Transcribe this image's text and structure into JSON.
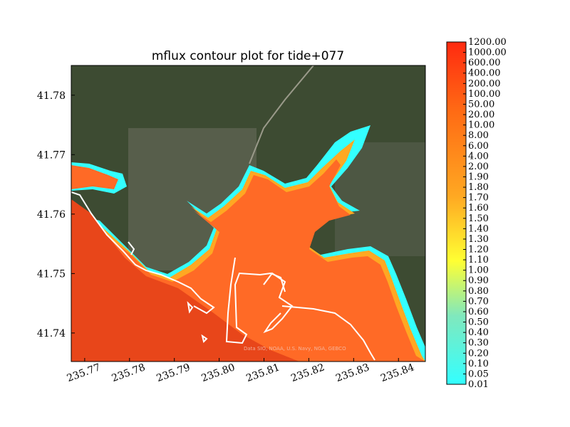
{
  "chart_data": {
    "type": "heatmap",
    "title": "mflux contour plot for tide+077",
    "xlabel": "",
    "ylabel": "",
    "xlim": [
      235.767,
      235.846
    ],
    "ylim": [
      41.7352,
      41.785
    ],
    "x_ticks": [
      "235.77",
      "235.78",
      "235.79",
      "235.80",
      "235.81",
      "235.82",
      "235.83",
      "235.84"
    ],
    "y_ticks": [
      "41.74",
      "41.75",
      "41.76",
      "41.77",
      "41.78"
    ],
    "colorbar": {
      "levels": [
        "0.01",
        "0.05",
        "0.10",
        "0.20",
        "0.30",
        "0.40",
        "0.50",
        "0.60",
        "0.70",
        "0.80",
        "0.90",
        "1.00",
        "1.10",
        "1.20",
        "1.30",
        "1.40",
        "1.50",
        "1.60",
        "1.70",
        "1.80",
        "1.90",
        "2.00",
        "4.00",
        "6.00",
        "8.00",
        "10.00",
        "20.00",
        "50.00",
        "100.00",
        "200.00",
        "400.00",
        "600.00",
        "1000.00",
        "1200.00"
      ],
      "colors": [
        "#33ffff",
        "#4cf7e9",
        "#66f0d3",
        "#80e8bd",
        "#99e0a7",
        "#b3d991",
        "#cce27a",
        "#e6f066",
        "#ffff33",
        "#fff230",
        "#ffe42d",
        "#ffd62a",
        "#ffc826",
        "#ffbb23",
        "#ffad20",
        "#ff9f1d",
        "#ff9119",
        "#ff8316",
        "#ff7613",
        "#ff6810",
        "#ff5a0c",
        "#ff4c09",
        "#ff3e06",
        "#ff3003"
      ]
    },
    "basemap_attribution": "Data SIO, NOAA, U.S. Navy, NGA, GEBCO",
    "colors": {
      "ocean": "#e8461a",
      "bay": "#ff6a26",
      "shore": "#33ffff",
      "land": "#3b4a2f",
      "coastline": "#ffffff"
    }
  }
}
